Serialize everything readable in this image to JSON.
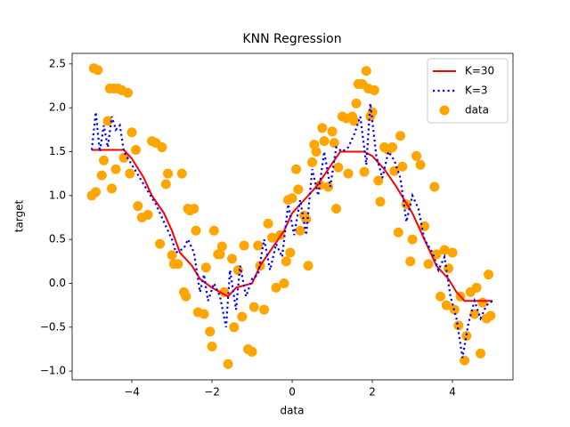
{
  "chart_data": {
    "type": "line",
    "title": "KNN Regression",
    "xlabel": "data",
    "ylabel": "target",
    "xlim": [
      -5.49,
      5.51
    ],
    "ylim": [
      -1.1,
      2.62
    ],
    "xticks": [
      {
        "value": -4,
        "label": "−4"
      },
      {
        "value": -2,
        "label": "−2"
      },
      0,
      2,
      4
    ],
    "yticks": [
      {
        "value": -1.0,
        "label": "−1.0"
      },
      {
        "value": -0.5,
        "label": "−0.5"
      },
      {
        "value": 0.0,
        "label": "0.0"
      },
      0.5,
      {
        "value": 1.0,
        "label": "1.0"
      },
      1.5,
      {
        "value": 2.0,
        "label": "2.0"
      },
      2.5
    ],
    "grid": false,
    "legend": "upper right",
    "series": [
      {
        "name": "K=30",
        "color": "#ff0000",
        "style": "solid",
        "x": [
          -5,
          -4.2,
          -4,
          -3.7,
          -3.5,
          -3.2,
          -3,
          -2.8,
          -2.5,
          -2.3,
          -2.0,
          -1.8,
          -1.6,
          -1.4,
          -1.0,
          -0.8,
          -0.5,
          -0.2,
          0,
          0.3,
          0.6,
          0.9,
          1.2,
          1.5,
          1.8,
          2.0,
          2.3,
          2.6,
          3.0,
          3.3,
          3.6,
          3.9,
          4.1,
          4.3,
          5
        ],
        "values": [
          1.52,
          1.52,
          1.42,
          1.2,
          1.0,
          0.8,
          0.6,
          0.35,
          0.2,
          0.05,
          -0.05,
          -0.1,
          -0.15,
          -0.05,
          0.0,
          0.2,
          0.4,
          0.6,
          0.8,
          0.95,
          1.1,
          1.3,
          1.5,
          1.5,
          1.5,
          1.45,
          1.3,
          1.1,
          0.8,
          0.5,
          0.2,
          0.05,
          -0.1,
          -0.2,
          -0.2
        ]
      },
      {
        "name": "K=3",
        "color": "#0000ff",
        "style": "dotted",
        "x": [
          -5,
          -4.9,
          -4.8,
          -4.7,
          -4.6,
          -4.5,
          -4.4,
          -4.3,
          -4.2,
          -4.0,
          -3.8,
          -3.6,
          -3.4,
          -3.2,
          -3.0,
          -2.9,
          -2.7,
          -2.6,
          -2.45,
          -2.3,
          -2.2,
          -2.1,
          -1.95,
          -1.8,
          -1.65,
          -1.55,
          -1.4,
          -1.3,
          -1.15,
          -1.0,
          -0.85,
          -0.7,
          -0.55,
          -0.4,
          -0.25,
          -0.1,
          0.05,
          0.2,
          0.35,
          0.5,
          0.65,
          0.8,
          0.95,
          1.1,
          1.25,
          1.4,
          1.55,
          1.7,
          1.85,
          1.95,
          2.1,
          2.25,
          2.4,
          2.55,
          2.7,
          2.85,
          3.0,
          3.15,
          3.3,
          3.5,
          3.65,
          3.8,
          3.95,
          4.1,
          4.25,
          4.4,
          4.55,
          4.7,
          4.85,
          5.0
        ],
        "values": [
          1.52,
          1.95,
          1.5,
          1.8,
          1.55,
          1.9,
          1.75,
          1.8,
          1.5,
          1.35,
          1.2,
          1.05,
          0.9,
          0.7,
          0.5,
          0.35,
          0.4,
          0.5,
          0.35,
          -0.1,
          0.1,
          -0.2,
          0.0,
          -0.15,
          -0.5,
          0.15,
          -0.3,
          0.2,
          -0.15,
          0.05,
          0.1,
          0.5,
          0.15,
          0.45,
          0.3,
          0.9,
          0.55,
          0.95,
          0.55,
          1.3,
          1.0,
          1.5,
          1.1,
          1.55,
          1.5,
          1.55,
          1.7,
          1.9,
          1.35,
          2.05,
          1.45,
          1.2,
          1.5,
          1.4,
          1.2,
          0.7,
          1.0,
          0.85,
          0.5,
          0.35,
          0.15,
          0.3,
          -0.15,
          -0.4,
          -0.85,
          -0.45,
          -0.2,
          -0.4,
          -0.25,
          -0.2
        ]
      },
      {
        "name": "data",
        "color": "#ffa500",
        "style": "scatter",
        "x": [
          -4.95,
          -4.85,
          -5.0,
          -4.9,
          -4.75,
          -4.7,
          -4.6,
          -4.55,
          -4.45,
          -4.35,
          -4.4,
          -4.5,
          -4.25,
          -4.2,
          -4.1,
          -4.0,
          -4.05,
          -3.9,
          -3.85,
          -3.75,
          -3.6,
          -3.5,
          -3.4,
          -3.3,
          -3.25,
          -3.15,
          -3.1,
          -3.0,
          -2.95,
          -2.85,
          -2.75,
          -2.7,
          -2.65,
          -2.6,
          -2.55,
          -2.45,
          -2.4,
          -2.35,
          -2.2,
          -2.15,
          -2.05,
          -2.0,
          -1.95,
          -1.85,
          -1.8,
          -1.75,
          -1.7,
          -1.6,
          -1.5,
          -1.45,
          -1.35,
          -1.25,
          -1.2,
          -1.1,
          -1.0,
          -0.95,
          -0.85,
          -0.8,
          -0.7,
          -0.6,
          -0.5,
          -0.4,
          -0.3,
          -0.2,
          -0.15,
          -0.05,
          0.0,
          -0.1,
          0.1,
          0.15,
          0.2,
          0.3,
          0.35,
          0.4,
          0.5,
          0.55,
          0.6,
          0.7,
          0.75,
          0.8,
          0.9,
          1.0,
          1.05,
          1.1,
          1.15,
          1.25,
          1.35,
          1.4,
          1.5,
          1.55,
          1.6,
          1.65,
          1.75,
          1.8,
          1.85,
          1.9,
          1.95,
          2.0,
          2.05,
          2.15,
          2.2,
          2.3,
          2.4,
          2.5,
          2.55,
          2.65,
          2.7,
          2.75,
          2.85,
          2.95,
          3.0,
          3.1,
          3.2,
          3.3,
          3.4,
          3.55,
          3.6,
          3.7,
          3.8,
          3.85,
          3.9,
          4.0,
          4.05,
          4.15,
          4.2,
          4.3,
          4.35,
          4.45,
          4.55,
          4.6,
          4.7,
          4.75,
          4.85,
          4.9,
          4.95
        ],
        "values": [
          2.45,
          2.43,
          1.0,
          1.04,
          1.23,
          1.4,
          1.85,
          2.22,
          2.22,
          2.22,
          1.3,
          1.08,
          2.2,
          1.43,
          2.17,
          1.72,
          1.25,
          1.52,
          0.88,
          0.75,
          0.78,
          1.62,
          1.6,
          0.45,
          1.55,
          1.13,
          1.25,
          0.32,
          0.22,
          0.22,
          1.25,
          -0.1,
          -0.15,
          0.85,
          0.83,
          0.85,
          0.6,
          -0.33,
          -0.35,
          0.18,
          -0.55,
          -0.72,
          0.6,
          0.33,
          0.33,
          0.42,
          -0.1,
          -0.92,
          0.28,
          -0.5,
          0.15,
          -0.38,
          0.43,
          -0.75,
          -0.78,
          -0.27,
          0.43,
          0.2,
          -0.3,
          0.68,
          0.52,
          -0.05,
          0.55,
          0.0,
          0.25,
          0.35,
          0.97,
          0.95,
          1.3,
          1.07,
          0.6,
          0.77,
          0.73,
          0.2,
          1.38,
          1.58,
          1.5,
          1.12,
          1.77,
          1.62,
          1.1,
          1.73,
          1.6,
          0.85,
          1.32,
          1.9,
          1.88,
          1.25,
          1.9,
          1.85,
          2.05,
          2.27,
          2.27,
          1.27,
          2.42,
          2.22,
          1.9,
          1.95,
          2.2,
          1.17,
          0.93,
          1.55,
          1.52,
          1.55,
          1.28,
          0.58,
          1.68,
          1.33,
          0.9,
          0.25,
          0.5,
          1.45,
          1.35,
          0.65,
          0.22,
          1.1,
          0.33,
          -0.15,
          0.38,
          -0.25,
          0.17,
          0.35,
          -0.3,
          -0.48,
          -0.15,
          -0.88,
          -0.6,
          -0.1,
          -0.35,
          -0.05,
          -0.8,
          -0.22,
          -0.4,
          0.1,
          -0.37
        ]
      }
    ]
  }
}
